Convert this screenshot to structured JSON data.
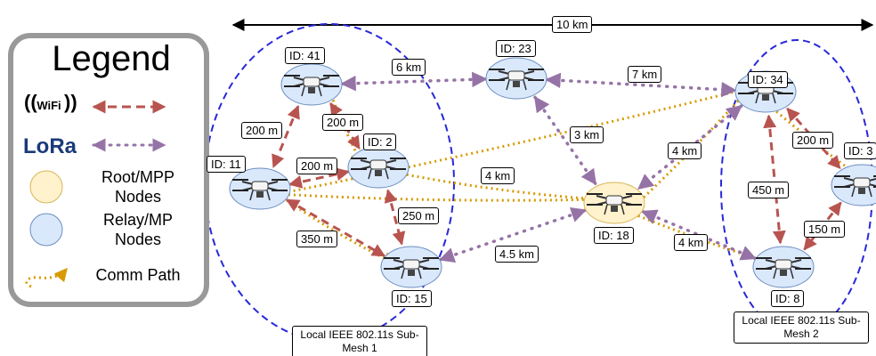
{
  "legend": {
    "title": "Legend",
    "wifi_icon": "WiFi",
    "lora_icon": "LoRa",
    "items": [
      "Root/MPP Nodes",
      "Relay/MP Nodes",
      "Comm Path"
    ]
  },
  "scale": {
    "label": "10 km"
  },
  "nodes": [
    {
      "label": "ID: 41",
      "role": "relay"
    },
    {
      "label": "ID: 23",
      "role": "relay"
    },
    {
      "label": "ID: 34",
      "role": "relay"
    },
    {
      "label": "ID: 2",
      "role": "relay"
    },
    {
      "label": "ID: 11",
      "role": "relay"
    },
    {
      "label": "ID: 18",
      "role": "root"
    },
    {
      "label": "ID: 3",
      "role": "relay"
    },
    {
      "label": "ID: 15",
      "role": "relay"
    },
    {
      "label": "ID: 8",
      "role": "relay"
    }
  ],
  "links": [
    {
      "label": "6 km",
      "kind": "lora"
    },
    {
      "label": "7 km",
      "kind": "lora"
    },
    {
      "label": "3 km",
      "kind": "lora"
    },
    {
      "label": "4.5 km",
      "kind": "lora"
    },
    {
      "label": "4 km",
      "kind": "lora"
    },
    {
      "label": "4 km",
      "kind": "lora"
    },
    {
      "label": "200 m",
      "kind": "wifi"
    },
    {
      "label": "200 m",
      "kind": "wifi"
    },
    {
      "label": "200 m",
      "kind": "wifi"
    },
    {
      "label": "250 m",
      "kind": "wifi"
    },
    {
      "label": "350 m",
      "kind": "wifi"
    },
    {
      "label": "200 m",
      "kind": "wifi"
    },
    {
      "label": "450 m",
      "kind": "wifi"
    },
    {
      "label": "150 m",
      "kind": "wifi"
    },
    {
      "label": "4 km",
      "kind": "comm"
    }
  ],
  "submeshes": [
    "Local IEEE 802.11s Sub-Mesh 1",
    "Local IEEE 802.11s Sub-Mesh 2"
  ]
}
